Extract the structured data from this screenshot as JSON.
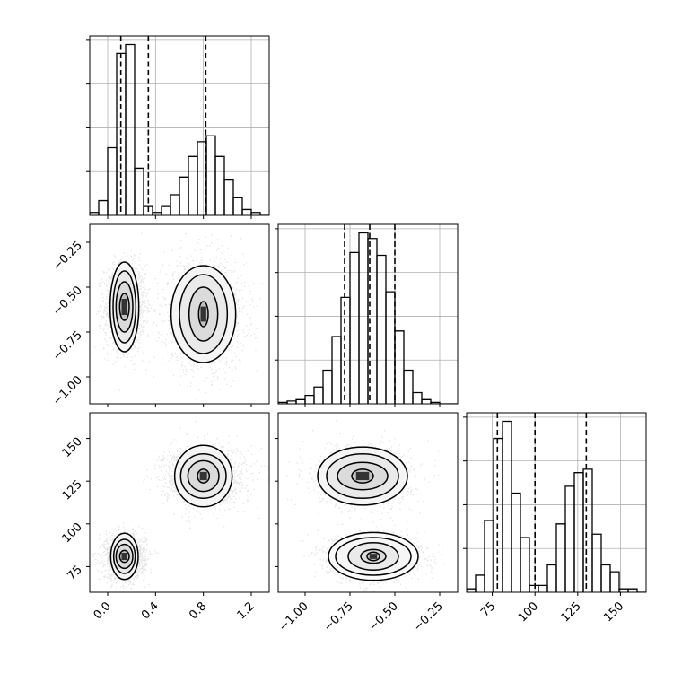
{
  "chart_data": {
    "type": "corner",
    "grid": true,
    "quantile_lines": "dashed",
    "parameters": [
      {
        "range": [
          -0.15,
          1.35
        ],
        "ticks": [
          0.0,
          0.4,
          0.8,
          1.2
        ],
        "tick_labels": [
          "0.0",
          "0.4",
          "0.8",
          "1.2"
        ],
        "quantiles": [
          0.11,
          0.34,
          0.82
        ]
      },
      {
        "range": [
          -1.15,
          -0.15
        ],
        "ticks": [
          -1.0,
          -0.75,
          -0.5,
          -0.25
        ],
        "tick_labels": [
          "−1.00",
          "−0.75",
          "−0.50",
          "−0.25"
        ],
        "quantiles": [
          -0.78,
          -0.64,
          -0.5
        ]
      },
      {
        "range": [
          60,
          165
        ],
        "ticks": [
          75,
          100,
          125,
          150
        ],
        "tick_labels": [
          "75",
          "100",
          "125",
          "150"
        ],
        "quantiles": [
          78,
          100,
          130
        ]
      }
    ],
    "histograms": [
      {
        "edges": [
          -0.15,
          -0.075,
          0.0,
          0.075,
          0.15,
          0.225,
          0.3,
          0.375,
          0.45,
          0.525,
          0.6,
          0.675,
          0.75,
          0.825,
          0.9,
          0.975,
          1.05,
          1.125,
          1.2,
          1.275,
          1.35
        ],
        "counts": [
          1,
          5,
          23,
          55,
          58,
          16,
          3,
          1,
          3,
          7,
          13,
          20,
          25,
          27,
          20,
          12,
          6,
          2,
          1,
          0
        ]
      },
      {
        "edges": [
          -1.15,
          -1.1,
          -1.05,
          -1.0,
          -0.95,
          -0.9,
          -0.85,
          -0.8,
          -0.75,
          -0.7,
          -0.65,
          -0.6,
          -0.55,
          -0.5,
          -0.45,
          -0.4,
          -0.35,
          -0.3,
          -0.25,
          -0.2,
          -0.15
        ],
        "counts": [
          0.5,
          1,
          1.5,
          3,
          6,
          12,
          24,
          38,
          54,
          61,
          59,
          53,
          40,
          26,
          12,
          4,
          1.5,
          0.5,
          0,
          0
        ]
      },
      {
        "edges": [
          60,
          65.25,
          70.5,
          75.75,
          81,
          86.25,
          91.5,
          96.75,
          102,
          107.25,
          112.5,
          117.75,
          123,
          128.25,
          133.5,
          138.75,
          144,
          149.25,
          154.5,
          159.75,
          165
        ],
        "counts": [
          1,
          5,
          21,
          45,
          50,
          29,
          16,
          2,
          2,
          8,
          20,
          31,
          35,
          36,
          17,
          8,
          6,
          1,
          1,
          0
        ]
      }
    ],
    "scatter_panels": [
      {
        "x_param": 0,
        "y_param": 1,
        "clusters": [
          {
            "center": [
              0.14,
              -0.61
            ],
            "sd": [
              0.085,
              0.12
            ],
            "levels": [
              [
                0.04,
                0.075
              ],
              [
                0.07,
                0.14
              ],
              [
                0.095,
                0.2
              ],
              [
                0.12,
                0.25
              ]
            ]
          },
          {
            "center": [
              0.8,
              -0.65
            ],
            "sd": [
              0.17,
              0.15
            ],
            "levels": [
              [
                0.04,
                0.07
              ],
              [
                0.12,
                0.15
              ],
              [
                0.2,
                0.22
              ],
              [
                0.27,
                0.27
              ]
            ]
          }
        ]
      },
      {
        "x_param": 0,
        "y_param": 2,
        "clusters": [
          {
            "center": [
              0.14,
              81
            ],
            "sd": [
              0.085,
              6.5
            ],
            "levels": [
              [
                0.04,
                3.5
              ],
              [
                0.07,
                7
              ],
              [
                0.09,
                10
              ],
              [
                0.115,
                13.5
              ]
            ]
          },
          {
            "center": [
              0.8,
              128
            ],
            "sd": [
              0.17,
              8.5
            ],
            "levels": [
              [
                0.05,
                4
              ],
              [
                0.13,
                9
              ],
              [
                0.19,
                13
              ],
              [
                0.24,
                18
              ]
            ]
          }
        ]
      },
      {
        "x_param": 1,
        "y_param": 2,
        "clusters": [
          {
            "center": [
              -0.68,
              128
            ],
            "sd": [
              0.13,
              8.5
            ],
            "levels": [
              [
                0.06,
                4
              ],
              [
                0.14,
                8
              ],
              [
                0.2,
                13
              ],
              [
                0.25,
                17
              ]
            ]
          },
          {
            "center": [
              -0.62,
              81
            ],
            "sd": [
              0.13,
              6.5
            ],
            "levels": [
              [
                0.035,
                2.5
              ],
              [
                0.07,
                4
              ],
              [
                0.14,
                8
              ],
              [
                0.21,
                11
              ],
              [
                0.25,
                14
              ]
            ]
          }
        ]
      }
    ]
  }
}
